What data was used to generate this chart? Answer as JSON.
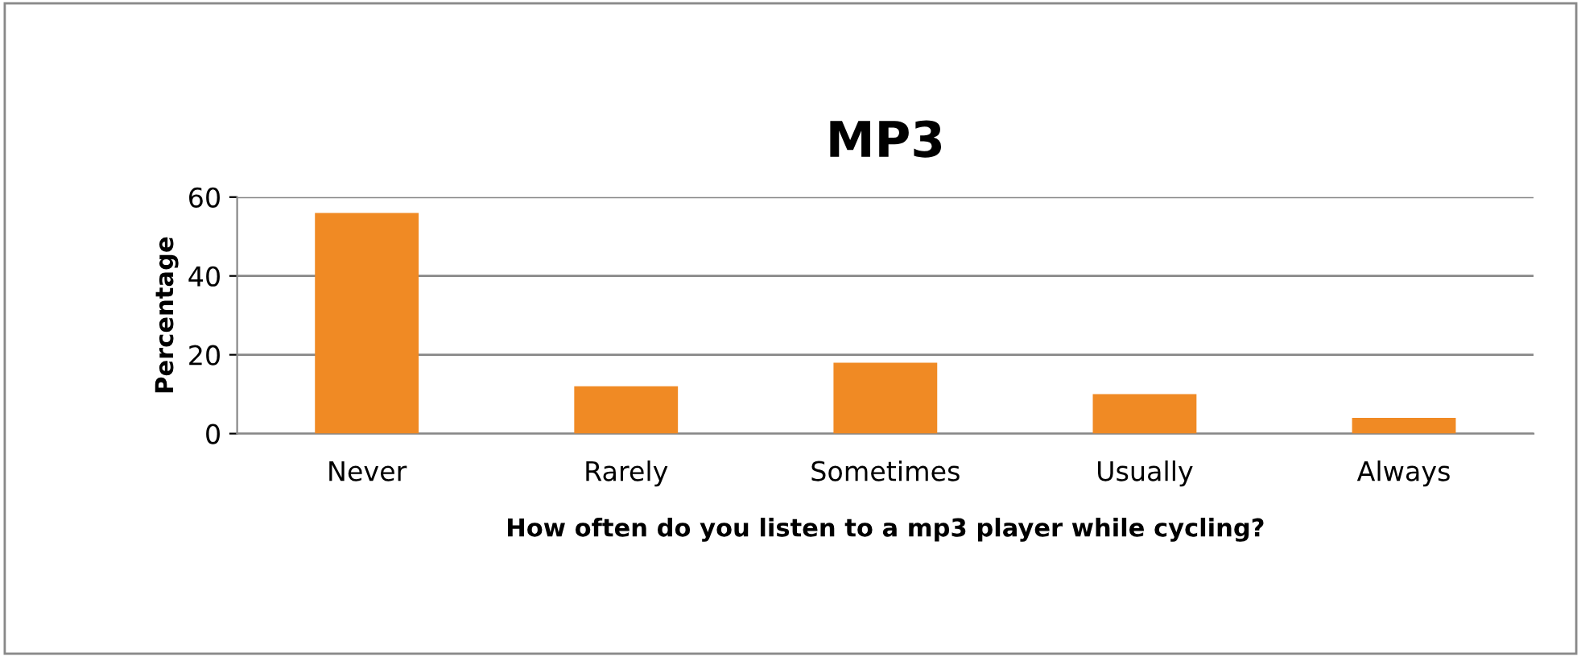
{
  "chart_data": {
    "type": "bar",
    "title": "MP3",
    "xlabel": "How often do you listen to a mp3 player while cycling?",
    "ylabel": "Percentage",
    "categories": [
      "Never",
      "Rarely",
      "Sometimes",
      "Usually",
      "Always"
    ],
    "values": [
      56,
      12,
      18,
      10,
      4
    ],
    "color": "#f08a24",
    "ylim": [
      0,
      60
    ],
    "yticks": [
      0,
      20,
      40,
      60
    ],
    "grid": "y",
    "legend": false
  }
}
